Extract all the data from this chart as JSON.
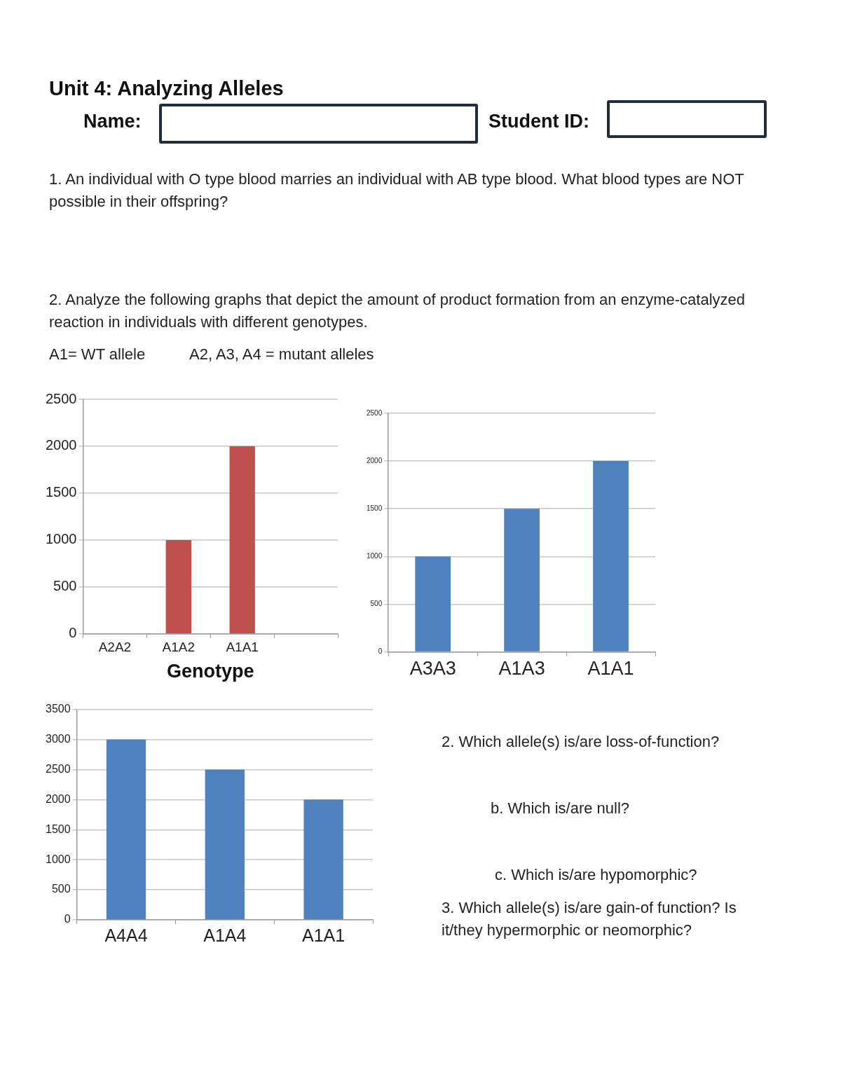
{
  "chart_data": [
    {
      "type": "bar",
      "title": "Unit 4: Analyzing Alleles",
      "categories": [
        "A2A2",
        "A1A2",
        "A1A1",
        null
      ],
      "values": [
        0,
        1000,
        2000,
        null
      ],
      "color": "#c0504d",
      "xlabel": "Genotype",
      "ylim": [
        0,
        2500
      ],
      "yticks": [
        0,
        500,
        1000,
        1500,
        2000,
        2500
      ],
      "grid": "y",
      "legend": false,
      "annotations": [
        "Name:",
        "Student ID:",
        "1. An individual with O type blood marries an individual with AB type blood. What blood types are NOT possible in their offspring?",
        "2. Analyze the following graphs that depict the amount of product formation from an enzyme-catalyzed reaction in individuals with different genotypes.",
        "A1= WT allele",
        "A2, A3, A4 = mutant alleles"
      ]
    },
    {
      "type": "bar",
      "categories": [
        "A3A3",
        "A1A3",
        "A1A1"
      ],
      "values": [
        1000,
        1500,
        2000
      ],
      "color": "#4f81bd",
      "ylim": [
        0,
        2500
      ],
      "yticks": [
        0,
        500,
        1000,
        1500,
        2000,
        2500
      ],
      "grid": "y",
      "legend": false
    },
    {
      "type": "bar",
      "categories": [
        "A4A4",
        "A1A4",
        "A1A1"
      ],
      "values": [
        3000,
        2500,
        2000
      ],
      "color": "#4f81bd",
      "ylim": [
        0,
        3500
      ],
      "yticks": [
        0,
        500,
        1000,
        1500,
        2000,
        2500,
        3000,
        3500
      ],
      "grid": "y",
      "legend": false,
      "annotations": [
        "2. Which allele(s) is/are loss-of-function?",
        "b. Which is/are null?",
        "c. Which is/are hypomorphic?",
        "3. Which allele(s) is/are gain-of function?  Is it/they hypermorphic or neomorphic?"
      ]
    }
  ]
}
